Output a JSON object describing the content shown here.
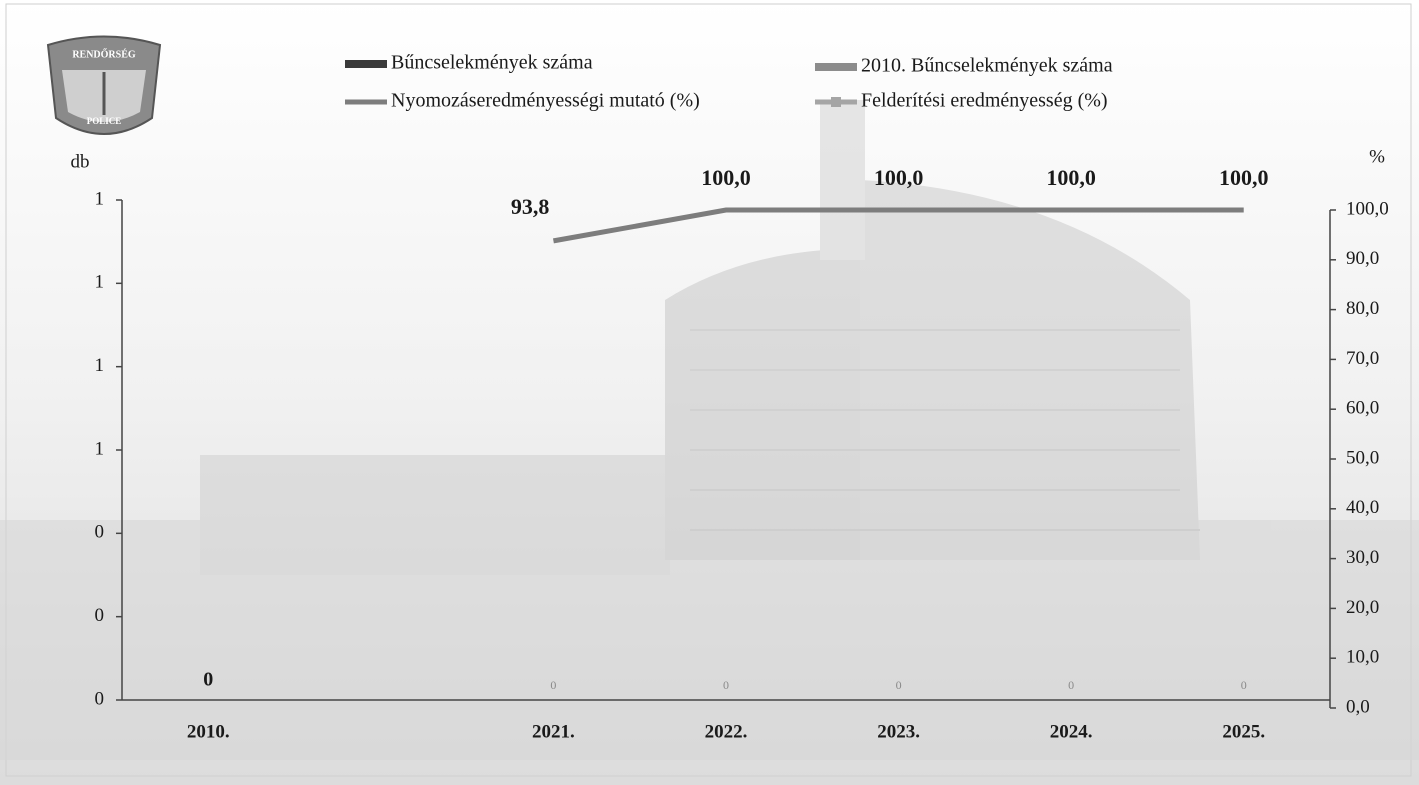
{
  "chart_data": {
    "type": "bar",
    "annotations": [
      "RENDŐRSÉG",
      "POLICE"
    ],
    "y_label": "db",
    "y2_label": "%",
    "categories": [
      "2010.",
      null,
      "2021.",
      "2022.",
      "2023.",
      "2024.",
      "2025."
    ],
    "series": [
      {
        "name": "Bűncselekmények száma",
        "type": "bar",
        "color": "#3a3a3a",
        "values": [
          null,
          null,
          0,
          0,
          0,
          0,
          0
        ]
      },
      {
        "name": "2010. Bűncselekmények száma",
        "type": "bar",
        "color": "#8c8c8c",
        "values": [
          0,
          null,
          null,
          null,
          null,
          null,
          null
        ]
      },
      {
        "name": "Nyomozáseredményességi mutató (%)",
        "type": "line",
        "axis": "y2",
        "color": "#7d7d7d",
        "values": [
          null,
          null,
          93.8,
          100,
          100,
          100,
          100
        ],
        "value_labels": [
          null,
          null,
          "93,8",
          "100,0",
          "100,0",
          "100,0",
          "100,0"
        ]
      },
      {
        "name": "Felderítési eredményesség (%)",
        "type": "line",
        "axis": "y2",
        "color": "#a5a5a5",
        "values": [
          null,
          null,
          null,
          null,
          null,
          null,
          null
        ]
      }
    ],
    "ylim": [
      0,
      1.2
    ],
    "yticks": [
      {
        "value": 0,
        "label": "0"
      },
      {
        "value": 0.2,
        "label": "0"
      },
      {
        "value": 0.4,
        "label": "0"
      },
      {
        "value": 0.6,
        "label": "1"
      },
      {
        "value": 0.8,
        "label": "1"
      },
      1,
      {
        "value": 1.2,
        "label": "1"
      }
    ],
    "y2lim": [
      0,
      100
    ],
    "y2ticks": [
      {
        "value": 0,
        "label": "0,0"
      },
      {
        "value": 10,
        "label": "10,0"
      },
      {
        "value": 20,
        "label": "20,0"
      },
      {
        "value": 30,
        "label": "30,0"
      },
      {
        "value": 40,
        "label": "40,0"
      },
      {
        "value": 50,
        "label": "50,0"
      },
      {
        "value": 60,
        "label": "60,0"
      },
      {
        "value": 70,
        "label": "70,0"
      },
      {
        "value": 80,
        "label": "80,0"
      },
      {
        "value": 90,
        "label": "90,0"
      },
      {
        "value": 100,
        "label": "100,0"
      }
    ],
    "grid": false
  }
}
